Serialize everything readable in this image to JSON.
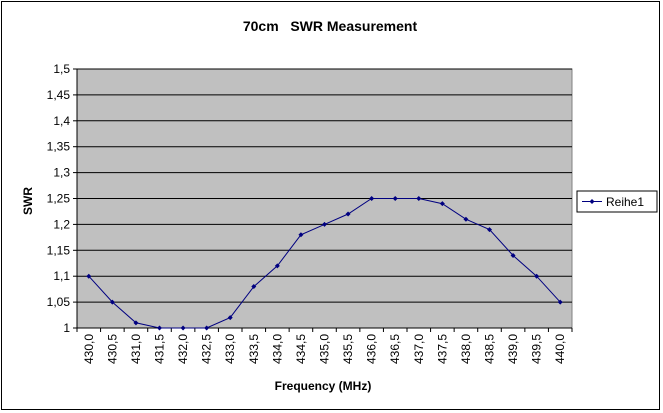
{
  "chart_data": {
    "type": "line",
    "title": "70cm   SWR Measurement",
    "xlabel": "Frequency (MHz)",
    "ylabel": "SWR",
    "x": [
      "430,0",
      "430,5",
      "431,0",
      "431,5",
      "432,0",
      "432,5",
      "433,0",
      "433,5",
      "434,0",
      "434,5",
      "435,0",
      "435,5",
      "436,0",
      "436,5",
      "437,0",
      "437,5",
      "438,0",
      "438,5",
      "439,0",
      "439,5",
      "440,0"
    ],
    "series": [
      {
        "name": "Reihe1",
        "values": [
          1.1,
          1.05,
          1.01,
          1.0,
          1.0,
          1.0,
          1.02,
          1.08,
          1.12,
          1.18,
          1.2,
          1.22,
          1.25,
          1.25,
          1.25,
          1.24,
          1.21,
          1.19,
          1.14,
          1.1,
          1.05
        ]
      }
    ],
    "ylim": [
      1,
      1.5
    ],
    "yticks": [
      "1",
      "1,05",
      "1,1",
      "1,15",
      "1,2",
      "1,25",
      "1,3",
      "1,35",
      "1,4",
      "1,45",
      "1,5"
    ],
    "grid": true,
    "legend": "right",
    "colors": {
      "plot_bg": "#c0c0c0",
      "line": "#000080",
      "grid": "#000000"
    }
  }
}
